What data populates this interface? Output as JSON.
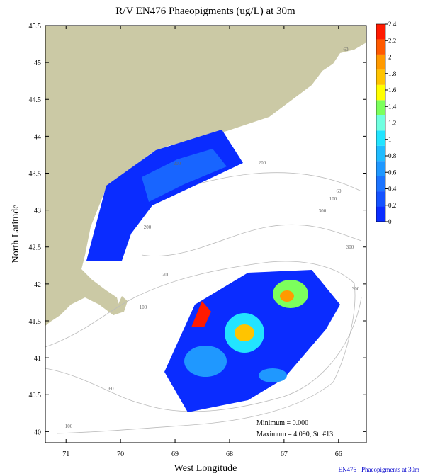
{
  "title": "R/V EN476 Phaeopigments (ug/L) at 30m",
  "xlabel": "West Longitude",
  "ylabel": "North Latitude",
  "xlim": [
    71.38,
    65.49
  ],
  "ylim": [
    39.85,
    45.5
  ],
  "xticks": [
    71,
    70,
    69,
    68,
    67,
    66
  ],
  "yticks": [
    40,
    40.5,
    41,
    41.5,
    42,
    42.5,
    43,
    43.5,
    44,
    44.5,
    45,
    45.5
  ],
  "colorbar": {
    "ticks": [
      0,
      0.2,
      0.4,
      0.6,
      0.8,
      1,
      1.2,
      1.4,
      1.6,
      1.8,
      2,
      2.2,
      2.4
    ],
    "colors": [
      "#0a2cff",
      "#1452ff",
      "#1c74ff",
      "#1f98ff",
      "#20bcff",
      "#22e4ff",
      "#70ffe0",
      "#7cff5c",
      "#ffff00",
      "#ffc400",
      "#ff9a00",
      "#ff5a00"
    ],
    "top_color": "#ff1a00"
  },
  "depth_labels": [
    "60",
    "100",
    "200",
    "300",
    "200",
    "200",
    "100",
    "60",
    "100",
    "300",
    "300",
    "60",
    "200"
  ],
  "annotations": {
    "minimum": "Minimum = 0.000",
    "maximum": "Maximum = 4.090, St. #13"
  },
  "footer": "EN476 : Phaeopigments at 30m"
}
